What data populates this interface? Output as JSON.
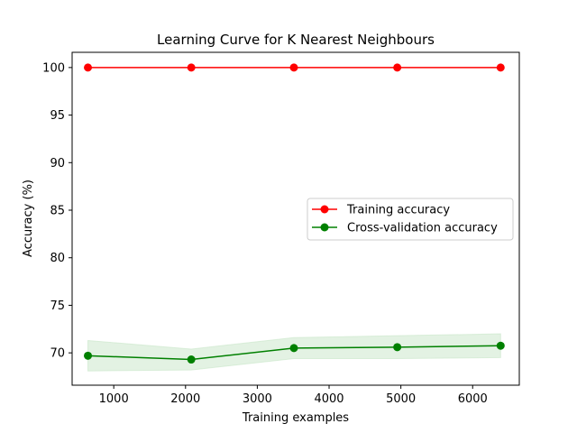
{
  "chart_data": {
    "type": "line",
    "title": "Learning Curve for K Nearest Neighbours",
    "xlabel": "Training examples",
    "ylabel": "Accuracy (%)",
    "xlim": [
      420,
      6650
    ],
    "ylim": [
      66.6,
      101.6
    ],
    "x": [
      640,
      2080,
      3510,
      4950,
      6390
    ],
    "xticks": [
      1000,
      2000,
      3000,
      4000,
      5000,
      6000
    ],
    "yticks": [
      70,
      75,
      80,
      85,
      90,
      95,
      100
    ],
    "grid": false,
    "legend_position": "center-right",
    "series": [
      {
        "name": "Training accuracy",
        "color": "#ff0000",
        "values": [
          100,
          100,
          100,
          100,
          100
        ],
        "band_lower": [
          100,
          100,
          100,
          100,
          100
        ],
        "band_upper": [
          100,
          100,
          100,
          100,
          100
        ]
      },
      {
        "name": "Cross-validation accuracy",
        "color": "#008000",
        "band_color": "#c8e6c8",
        "values": [
          69.7,
          69.3,
          70.5,
          70.6,
          70.75
        ],
        "band_lower": [
          68.1,
          68.2,
          69.4,
          69.4,
          69.5
        ],
        "band_upper": [
          71.3,
          70.4,
          71.6,
          71.8,
          72.0
        ]
      }
    ]
  }
}
